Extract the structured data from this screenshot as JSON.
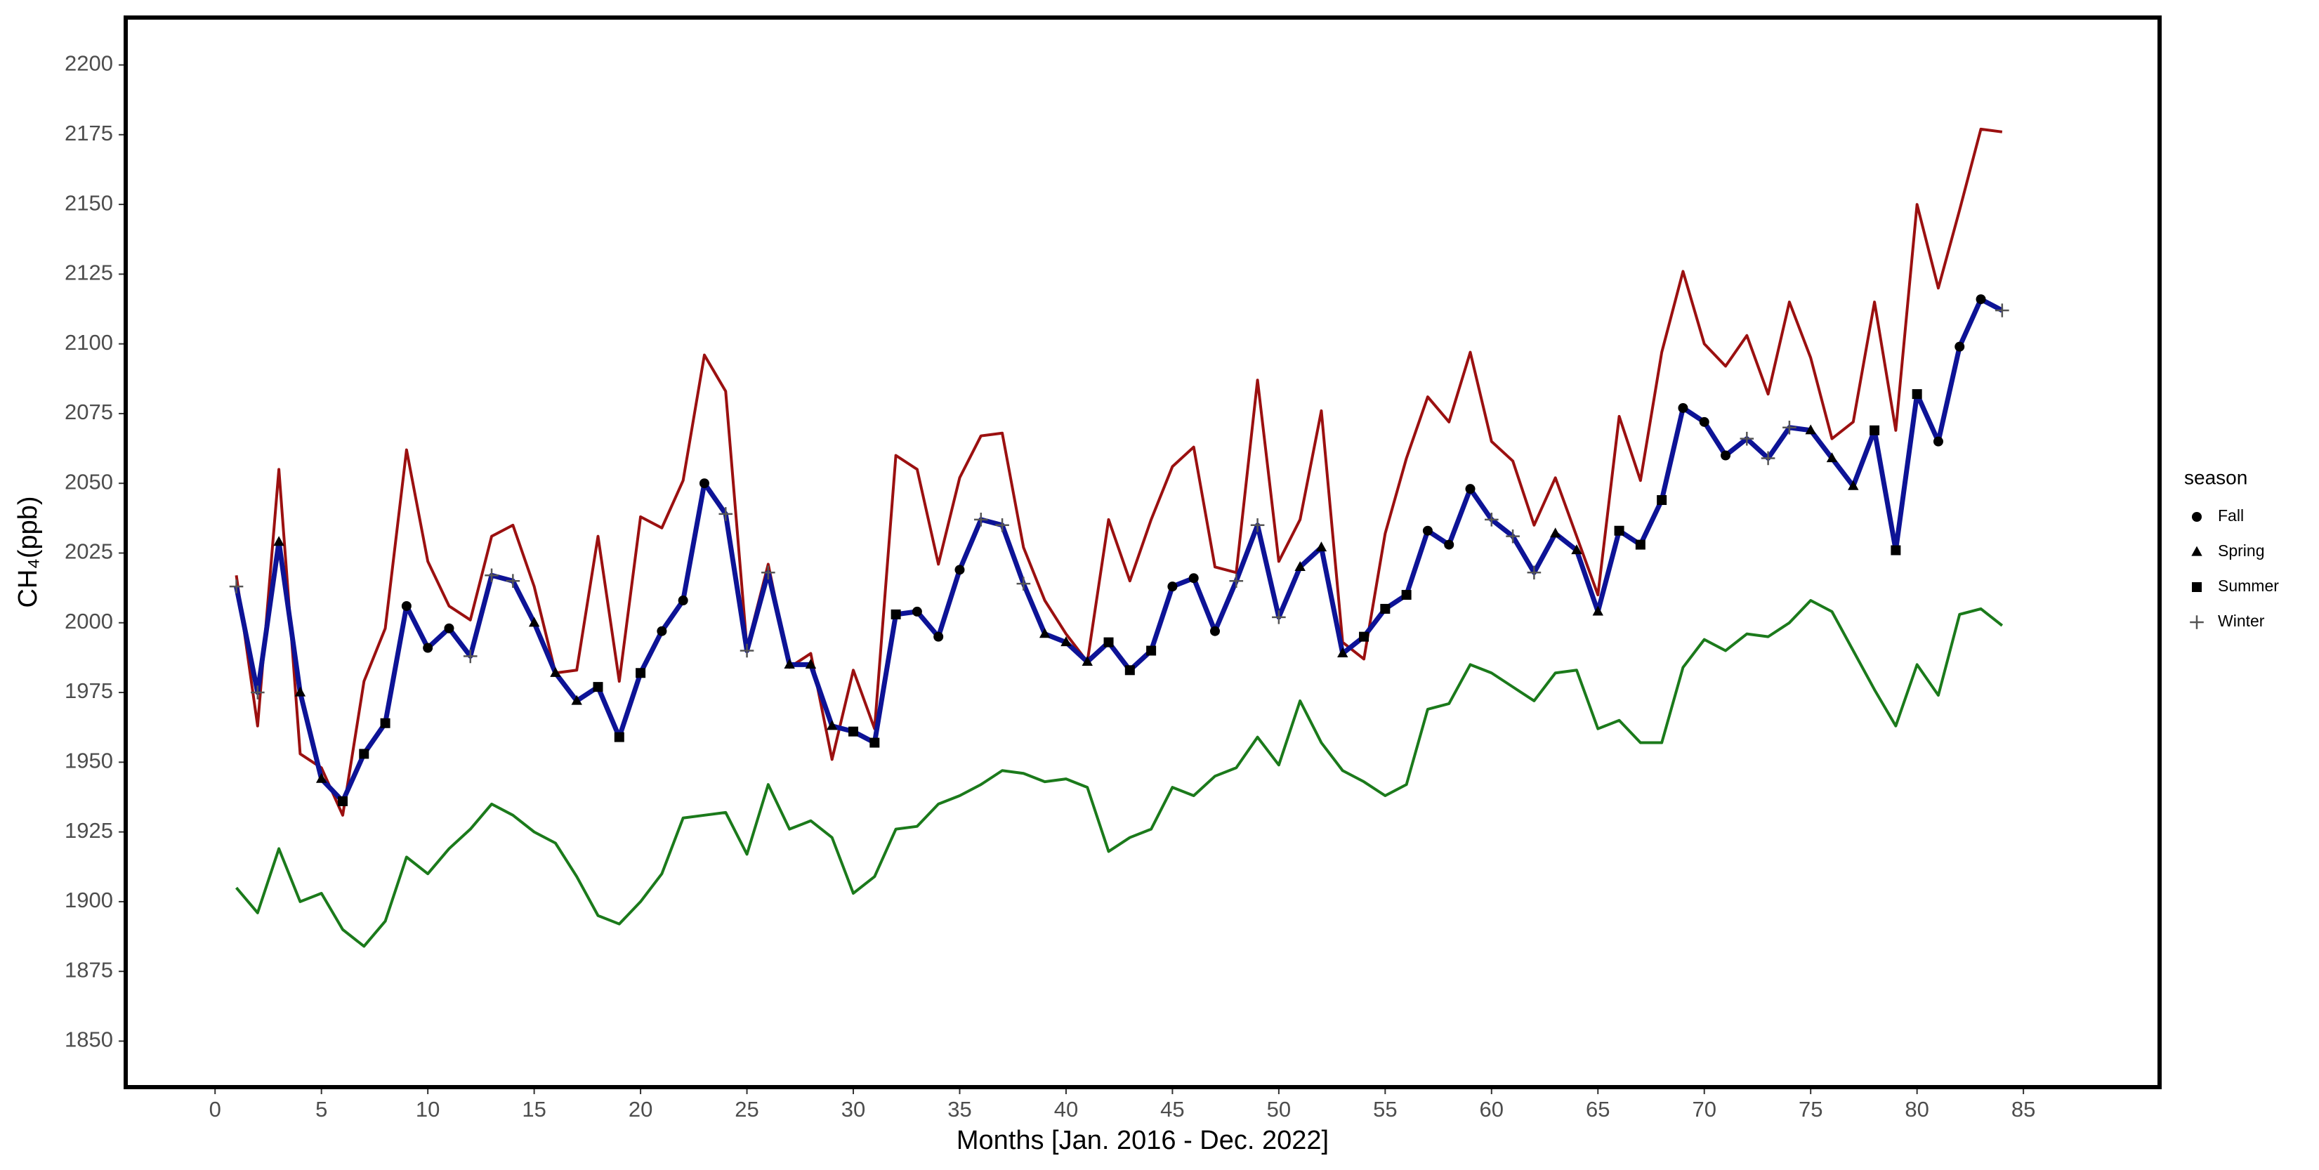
{
  "chart_data": {
    "type": "line",
    "x_label": "Months [Jan. 2016 - Dec. 2022]",
    "y_label": "CH₄(ppb)",
    "xlim": [
      -4.2,
      91.4
    ],
    "ylim": [
      1833.5,
      2217
    ],
    "xticks": [
      0,
      5,
      10,
      15,
      20,
      25,
      30,
      35,
      40,
      45,
      50,
      55,
      60,
      65,
      70,
      75,
      80,
      85
    ],
    "yticks": [
      1850,
      1875,
      1900,
      1925,
      1950,
      1975,
      2000,
      2025,
      2050,
      2075,
      2100,
      2125,
      2150,
      2175,
      2200
    ],
    "grid": false,
    "x": [
      1,
      2,
      3,
      4,
      5,
      6,
      7,
      8,
      9,
      10,
      11,
      12,
      13,
      14,
      15,
      16,
      17,
      18,
      19,
      20,
      21,
      22,
      23,
      24,
      25,
      26,
      27,
      28,
      29,
      30,
      31,
      32,
      33,
      34,
      35,
      36,
      37,
      38,
      39,
      40,
      41,
      42,
      43,
      44,
      45,
      46,
      47,
      48,
      49,
      50,
      51,
      52,
      53,
      54,
      55,
      56,
      57,
      58,
      59,
      60,
      61,
      62,
      63,
      64,
      65,
      66,
      67,
      68,
      69,
      70,
      71,
      72,
      73,
      74,
      75,
      76,
      77,
      78,
      79,
      80,
      81,
      82,
      83,
      84
    ],
    "legend": {
      "title": "season",
      "position": "right",
      "entries": [
        {
          "label": "Fall",
          "shape": "circle"
        },
        {
          "label": "Spring",
          "shape": "triangle"
        },
        {
          "label": "Summer",
          "shape": "square"
        },
        {
          "label": "Winter",
          "shape": "plus"
        }
      ]
    },
    "series": [
      {
        "color": "#9b1010",
        "width": 4,
        "values": [
          2017,
          1963,
          2055,
          1953,
          1948,
          1931,
          1979,
          1998,
          2062,
          2022,
          2006,
          2001,
          2031,
          2035,
          2013,
          1982,
          1983,
          2031,
          1979,
          2038,
          2034,
          2051,
          2096,
          2083,
          1991,
          2021,
          1984,
          1989,
          1951,
          1983,
          1962,
          2060,
          2055,
          2021,
          2052,
          2067,
          2068,
          2027,
          2008,
          1996,
          1986,
          2037,
          2015,
          2037,
          2056,
          2063,
          2020,
          2018,
          2087,
          2022,
          2037,
          2076,
          1993,
          1987,
          2032,
          2059,
          2081,
          2072,
          2097,
          2065,
          2058,
          2035,
          2052,
          2031,
          2010,
          2074,
          2051,
          2097,
          2126,
          2100,
          2092,
          2103,
          2082,
          2115,
          2095,
          2066,
          2072,
          2115,
          2069,
          2150,
          2120,
          2148,
          2177,
          2176
        ]
      },
      {
        "color": "#0d1396",
        "width": 7,
        "values": [
          2013,
          1975,
          2029,
          1975,
          1944,
          1936,
          1953,
          1964,
          2006,
          1991,
          1998,
          1988,
          2017,
          2015,
          2000,
          1982,
          1972,
          1977,
          1959,
          1982,
          1997,
          2008,
          2050,
          2039,
          1990,
          2018,
          1985,
          1985,
          1963,
          1961,
          1957,
          2003,
          2004,
          1995,
          2019,
          2037,
          2035,
          2014,
          1996,
          1993,
          1986,
          1993,
          1983,
          1990,
          2013,
          2016,
          1997,
          2015,
          2035,
          2002,
          2020,
          2027,
          1989,
          1995,
          2005,
          2010,
          2033,
          2028,
          2048,
          2037,
          2031,
          2018,
          2032,
          2026,
          2004,
          2033,
          2028,
          2044,
          2077,
          2072,
          2060,
          2066,
          2059,
          2070,
          2069,
          2059,
          2049,
          2069,
          2026,
          2082,
          2065,
          2099,
          2116,
          2112
        ],
        "markers": [
          "Winter",
          "Winter",
          "Spring",
          "Spring",
          "Spring",
          "Summer",
          "Summer",
          "Summer",
          "Fall",
          "Fall",
          "Fall",
          "Winter",
          "Winter",
          "Winter",
          "Spring",
          "Spring",
          "Spring",
          "Summer",
          "Summer",
          "Summer",
          "Fall",
          "Fall",
          "Fall",
          "Winter",
          "Winter",
          "Winter",
          "Spring",
          "Spring",
          "Spring",
          "Summer",
          "Summer",
          "Summer",
          "Fall",
          "Fall",
          "Fall",
          "Winter",
          "Winter",
          "Winter",
          "Spring",
          "Spring",
          "Spring",
          "Summer",
          "Summer",
          "Summer",
          "Fall",
          "Fall",
          "Fall",
          "Winter",
          "Winter",
          "Winter",
          "Spring",
          "Spring",
          "Spring",
          "Summer",
          "Summer",
          "Summer",
          "Fall",
          "Fall",
          "Fall",
          "Winter",
          "Winter",
          "Winter",
          "Spring",
          "Spring",
          "Spring",
          "Summer",
          "Summer",
          "Summer",
          "Fall",
          "Fall",
          "Fall",
          "Winter",
          "Winter",
          "Winter",
          "Spring",
          "Spring",
          "Spring",
          "Summer",
          "Summer",
          "Summer",
          "Fall",
          "Fall",
          "Fall",
          "Winter"
        ]
      },
      {
        "color": "#1b7a1b",
        "width": 4,
        "values": [
          1905,
          1896,
          1919,
          1900,
          1903,
          1890,
          1884,
          1893,
          1916,
          1910,
          1919,
          1926,
          1935,
          1931,
          1925,
          1921,
          1909,
          1895,
          1892,
          1900,
          1910,
          1930,
          1931,
          1932,
          1917,
          1942,
          1926,
          1929,
          1923,
          1903,
          1909,
          1926,
          1927,
          1935,
          1938,
          1942,
          1947,
          1946,
          1943,
          1944,
          1941,
          1918,
          1923,
          1926,
          1941,
          1938,
          1945,
          1948,
          1959,
          1949,
          1972,
          1957,
          1947,
          1943,
          1938,
          1942,
          1969,
          1971,
          1985,
          1982,
          1977,
          1972,
          1982,
          1983,
          1962,
          1965,
          1957,
          1957,
          1984,
          1994,
          1990,
          1996,
          1995,
          2000,
          2008,
          2004,
          1990,
          1976,
          1963,
          1985,
          1974,
          2003,
          2005,
          1999
        ]
      }
    ]
  }
}
